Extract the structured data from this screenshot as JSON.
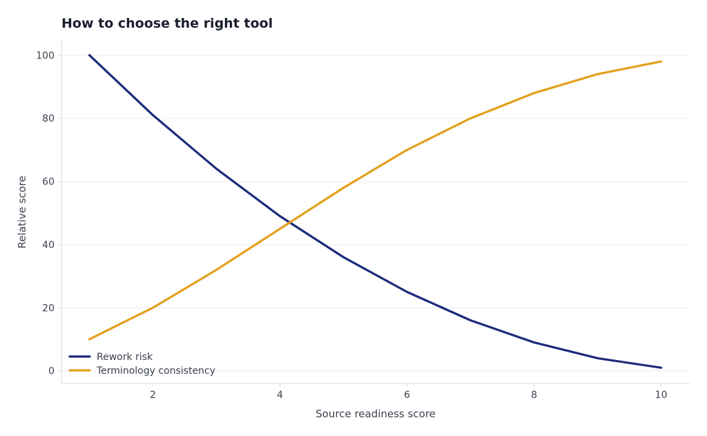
{
  "chart_data": {
    "type": "line",
    "title": "How to choose the right tool",
    "xlabel": "Source readiness score",
    "ylabel": "Relative score",
    "x": [
      1,
      2,
      3,
      4,
      5,
      6,
      7,
      8,
      9,
      10
    ],
    "series": [
      {
        "name": "Rework risk",
        "color": "#1c2a7a",
        "values": [
          100,
          81,
          64,
          49,
          36,
          25,
          16,
          9,
          4,
          1
        ]
      },
      {
        "name": "Terminology consistency",
        "color": "#e3a01b",
        "values": [
          10,
          20,
          32,
          45,
          58,
          70,
          80,
          88,
          94,
          98
        ]
      }
    ],
    "xlim": [
      0.56,
      10.45
    ],
    "ylim": [
      -4,
      105
    ],
    "xticks": [
      2,
      4,
      6,
      8,
      10
    ],
    "yticks": [
      0,
      20,
      40,
      60,
      80,
      100
    ],
    "grid": true,
    "legend_position": "bottom-left"
  }
}
